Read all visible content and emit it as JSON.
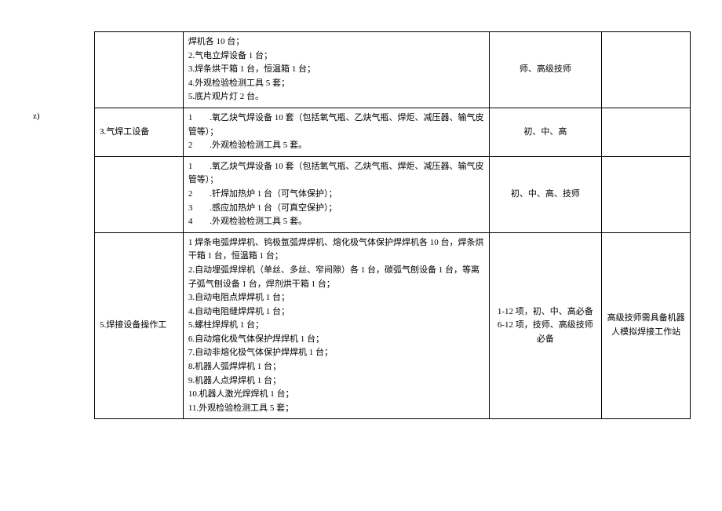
{
  "page_label": "z)",
  "rows": [
    {
      "name": "",
      "desc_lines": [
        "焊机各 10 台；",
        "2.气电立焊设备 1 台；",
        "3.焊条烘干箱 1 台，恒温箱 1 台；",
        "4.外观检验检测工具 5 套；",
        "5.底片观片灯 2 台。"
      ],
      "level": "师、高级技师",
      "note": ""
    },
    {
      "name": "3.气焊工设备",
      "desc_lines": [
        "1　　.氧乙炔气焊设备 10 套（包括氧气瓶、乙炔气瓶、焊炬、减压器、输气皮管等）；",
        "2　　.外观检验检测工具 5 套。"
      ],
      "level": "初、中、高",
      "note": ""
    },
    {
      "name": "",
      "desc_lines": [
        "1　　.氧乙炔气焊设备 10 套（包括氧气瓶、乙炔气瓶、焊炬、减压器、输气皮管等）；",
        "2　　.钎焊加热炉 1 台（可气体保护）；",
        "3　　.感应加热炉 1 台（可真空保护）；",
        "4　　.外观检验检测工具 5 套。"
      ],
      "level": "初、中、高、技师",
      "note": ""
    },
    {
      "name": "5.焊接设备操作工",
      "desc_lines": [
        "1 焊条电弧焊焊机、钨极氩弧焊焊机、熔化极气体保护焊焊机各 10 台，焊条烘干箱 1 台，恒温箱 1 台；",
        "2.自动埋弧焊焊机（单丝、多丝、窄间隙）各 1 台，碳弧气刨设备 1 台，等离子弧气刨设备 1 台，焊剂烘干箱 1 台；",
        "3.自动电阻点焊焊机 1 台；",
        "4.自动电阻缝焊焊机 1 台；",
        "5.螺柱焊焊机 1 台；",
        "6.自动熔化极气体保护焊焊机 1 台；",
        "7.自动非熔化极气体保护焊焊机 1 台；",
        "8.机器人弧焊焊机 1 台；",
        "9.机器人点焊焊机 1 台；",
        "10.机器人激光焊焊机 1 台；",
        "11.外观检验检测工具 5 套；"
      ],
      "level": "1-12 项，初、中、高必备\n6-12 项，技师、高级技师必备",
      "note": "高级技师需具备机器人模拟焊接工作站"
    }
  ]
}
